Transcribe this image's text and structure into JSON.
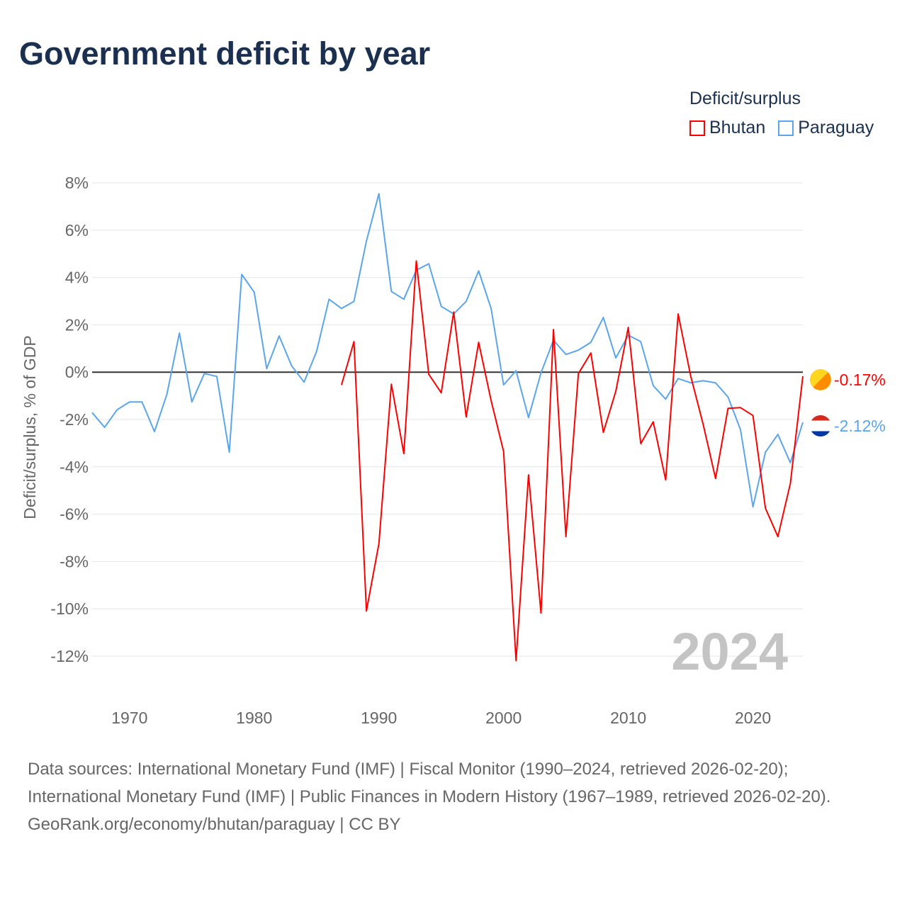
{
  "title": "Government deficit by year",
  "legend": {
    "title": "Deficit/surplus",
    "items": [
      {
        "name": "Bhutan",
        "color": "#ff0000"
      },
      {
        "name": "Paraguay",
        "color": "#5aa5ec"
      }
    ]
  },
  "footer": {
    "sources": "Data sources: International Monetary Fund (IMF) | Fiscal Monitor (1990–2024, retrieved 2026-02-20); International Monetary Fund (IMF) | Public Finances in Modern History (1967–1989, retrieved 2026-02-20).",
    "credit": "GeoRank.org/economy/bhutan/paraguay | CC BY"
  },
  "chart_data": {
    "type": "line",
    "title": "Government deficit by year",
    "xlabel": "",
    "ylabel": "Deficit/surplus, % of GDP",
    "xlim": [
      1967,
      2024
    ],
    "ylim": [
      -12,
      8
    ],
    "xticks": [
      1970,
      1980,
      1990,
      2000,
      2010,
      2020
    ],
    "yticks": [
      8,
      6,
      4,
      2,
      0,
      -2,
      -4,
      -6,
      -8,
      -10,
      -12
    ],
    "ytick_labels": [
      "8%",
      "6%",
      "4%",
      "2%",
      "0%",
      "-2%",
      "-4%",
      "-6%",
      "-8%",
      "-10%",
      "-12%"
    ],
    "grid": true,
    "legend_position": "top-right",
    "year_watermark": "2024",
    "series": [
      {
        "name": "Paraguay",
        "color": "#5aa5ec",
        "start_year": 1967,
        "end_label": "-2.12%",
        "values": [
          -1.71,
          -2.33,
          -1.59,
          -1.26,
          -1.26,
          -2.51,
          -0.93,
          1.65,
          -1.26,
          -0.06,
          -0.18,
          -3.38,
          4.13,
          3.38,
          0.15,
          1.53,
          0.27,
          -0.42,
          0.87,
          3.08,
          2.69,
          2.99,
          5.54,
          7.54,
          3.41,
          3.08,
          4.31,
          4.58,
          2.78,
          2.46,
          2.99,
          4.28,
          2.69,
          -0.54,
          0.06,
          -1.92,
          -0.03,
          1.35,
          0.75,
          0.93,
          1.26,
          2.31,
          0.6,
          1.56,
          1.29,
          -0.57,
          -1.14,
          -0.27,
          -0.45,
          -0.36,
          -0.45,
          -1.05,
          -2.43,
          -5.69,
          -3.38,
          -2.63,
          -3.83,
          -2.12
        ]
      },
      {
        "name": "Bhutan",
        "color": "#ff0000",
        "start_year": 1987,
        "end_label": "-0.17%",
        "values": [
          -0.54,
          1.29,
          -10.09,
          -7.25,
          -0.51,
          -3.44,
          4.7,
          -0.09,
          -0.87,
          2.54,
          -1.89,
          1.26,
          -1.2,
          -3.35,
          -12.19,
          -4.34,
          -10.18,
          1.8,
          -6.95,
          -0.06,
          0.81,
          -2.54,
          -0.81,
          1.89,
          -3.02,
          -2.1,
          -4.55,
          2.46,
          -0.15,
          -2.19,
          -4.49,
          -1.53,
          -1.5,
          -1.83,
          -5.75,
          -6.95,
          -4.7,
          -0.17
        ]
      }
    ]
  }
}
